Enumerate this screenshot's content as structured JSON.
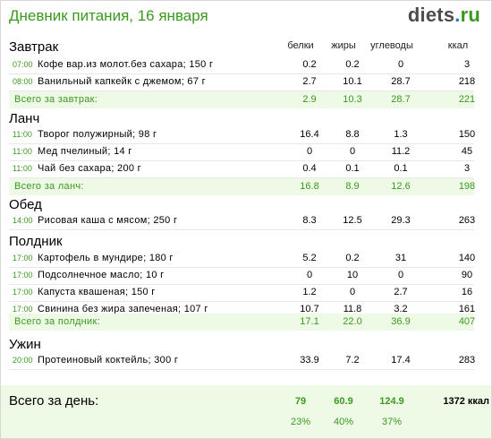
{
  "header": {
    "title": "Дневник питания, 16 января",
    "logo_part1": "diets",
    "logo_dot": ".",
    "logo_part2": "ru"
  },
  "columns": {
    "protein": "белки",
    "fat": "жиры",
    "carbs": "углеводы",
    "kcal": "ккал"
  },
  "sections": [
    {
      "name": "Завтрак",
      "items": [
        {
          "time": "07:00",
          "name": "Кофе вар.из молот.без сахара; 150 г",
          "protein": "0.2",
          "fat": "0.2",
          "carbs": "0",
          "kcal": "3"
        },
        {
          "time": "08:00",
          "name": "Ванильный капкейк с джемом; 67 г",
          "protein": "2.7",
          "fat": "10.1",
          "carbs": "28.7",
          "kcal": "218"
        }
      ],
      "total": {
        "label": "Всего за завтрак:",
        "protein": "2.9",
        "fat": "10.3",
        "carbs": "28.7",
        "kcal": "221"
      }
    },
    {
      "name": "Ланч",
      "items": [
        {
          "time": "11:00",
          "name": "Творог полужирный; 98 г",
          "protein": "16.4",
          "fat": "8.8",
          "carbs": "1.3",
          "kcal": "150"
        },
        {
          "time": "11:00",
          "name": "Мед пчелиный; 14 г",
          "protein": "0",
          "fat": "0",
          "carbs": "11.2",
          "kcal": "45"
        },
        {
          "time": "11:00",
          "name": "Чай без сахара; 200 г",
          "protein": "0.4",
          "fat": "0.1",
          "carbs": "0.1",
          "kcal": "3"
        }
      ],
      "total": {
        "label": "Всего за ланч:",
        "protein": "16.8",
        "fat": "8.9",
        "carbs": "12.6",
        "kcal": "198"
      }
    },
    {
      "name": "Обед",
      "items": [
        {
          "time": "14:00",
          "name": "Рисовая каша с мясом; 250 г",
          "protein": "8.3",
          "fat": "12.5",
          "carbs": "29.3",
          "kcal": "263"
        }
      ]
    },
    {
      "name": "Полдник",
      "items": [
        {
          "time": "17:00",
          "name": "Картофель в мундире; 180 г",
          "protein": "5.2",
          "fat": "0.2",
          "carbs": "31",
          "kcal": "140"
        },
        {
          "time": "17:00",
          "name": "Подсолнечное масло; 10 г",
          "protein": "0",
          "fat": "10",
          "carbs": "0",
          "kcal": "90"
        },
        {
          "time": "17:00",
          "name": "Капуста квашеная; 150 г",
          "protein": "1.2",
          "fat": "0",
          "carbs": "2.7",
          "kcal": "16"
        },
        {
          "time": "17:00",
          "name": "Свинина без жира запеченая; 107 г",
          "protein": "10.7",
          "fat": "11.8",
          "carbs": "3.2",
          "kcal": "161"
        }
      ],
      "total": {
        "label": "Всего за полдник:",
        "protein": "17.1",
        "fat": "22.0",
        "carbs": "36.9",
        "kcal": "407"
      }
    },
    {
      "name": "Ужин",
      "items": [
        {
          "time": "20:00",
          "name": "Протеиновый коктейль; 300 г",
          "protein": "33.9",
          "fat": "7.2",
          "carbs": "17.4",
          "kcal": "283"
        }
      ]
    }
  ],
  "day_total": {
    "label": "Всего за день:",
    "protein": "79",
    "fat": "60.9",
    "carbs": "124.9",
    "kcal": "1372 ккал",
    "protein_pct": "23%",
    "fat_pct": "40%",
    "carbs_pct": "37%"
  }
}
